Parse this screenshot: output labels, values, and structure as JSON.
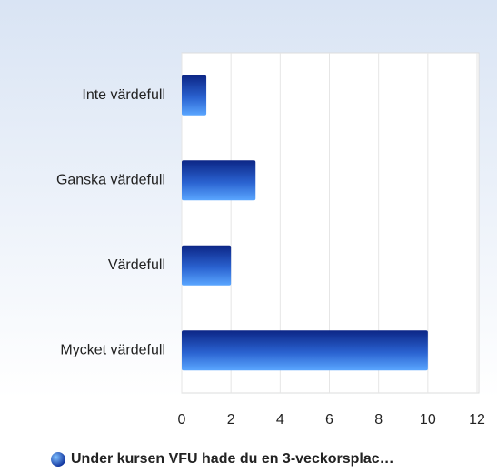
{
  "chart_data": {
    "type": "bar",
    "orientation": "horizontal",
    "categories": [
      "Inte värdefull",
      "Ganska värdefull",
      "Värdefull",
      "Mycket värdefull"
    ],
    "series": [
      {
        "name": "Under kursen VFU hade du en 3-veckorsplac…",
        "color": "#2a62d0",
        "values": [
          1,
          3,
          2,
          10
        ]
      }
    ],
    "xlim": [
      0,
      12
    ],
    "xticks": [
      0,
      2,
      4,
      6,
      8,
      10,
      12
    ],
    "grid": true,
    "legend": "bottom"
  }
}
